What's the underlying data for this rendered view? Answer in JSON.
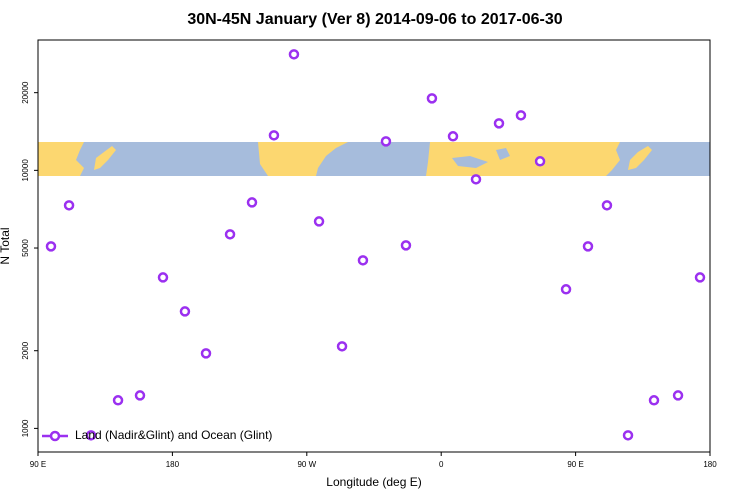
{
  "chart_data": {
    "type": "scatter",
    "title": "30N-45N January (Ver 8)   2014-09-06 to 2017-06-30",
    "x_label": "Longitude (deg E)",
    "y_label": "N Total",
    "log_y": true,
    "legend_position": "bottom-left",
    "xlim": [
      90,
      540
    ],
    "ylim": [
      810,
      32000
    ],
    "xticks": [
      {
        "value": 90,
        "label": "90 E"
      },
      {
        "value": 180,
        "label": "180"
      },
      {
        "value": 270,
        "label": "90 W"
      },
      {
        "value": 360,
        "label": "0"
      },
      {
        "value": 450,
        "label": "90 E"
      },
      {
        "value": 540,
        "label": "180"
      }
    ],
    "yticks": [
      1000,
      2000,
      5000,
      10000,
      20000
    ],
    "series": [
      {
        "name": "Land (Nadir&Glint) and Ocean (Glint)",
        "color": "#9b30f0",
        "x": [
          98.7,
          110.8,
          125.5,
          143.6,
          158.3,
          173.7,
          188.4,
          202.5,
          218.6,
          233.3,
          248,
          261.4,
          278.2,
          293.6,
          307.6,
          323,
          336.4,
          353.8,
          367.9,
          383.3,
          398.7,
          413.4,
          426.2,
          443.6,
          458.3,
          471,
          485.1,
          502.5,
          518.6,
          533.3
        ],
        "values": [
          5075,
          7318,
          940,
          1285,
          1342,
          3847,
          2840,
          1953,
          5650,
          7510,
          13670,
          28160,
          6340,
          2080,
          4480,
          12950,
          5120,
          19010,
          13550,
          9230,
          15210,
          16340,
          10840,
          3460,
          5075,
          7318,
          940,
          1285,
          1342,
          3847
        ]
      }
    ]
  }
}
